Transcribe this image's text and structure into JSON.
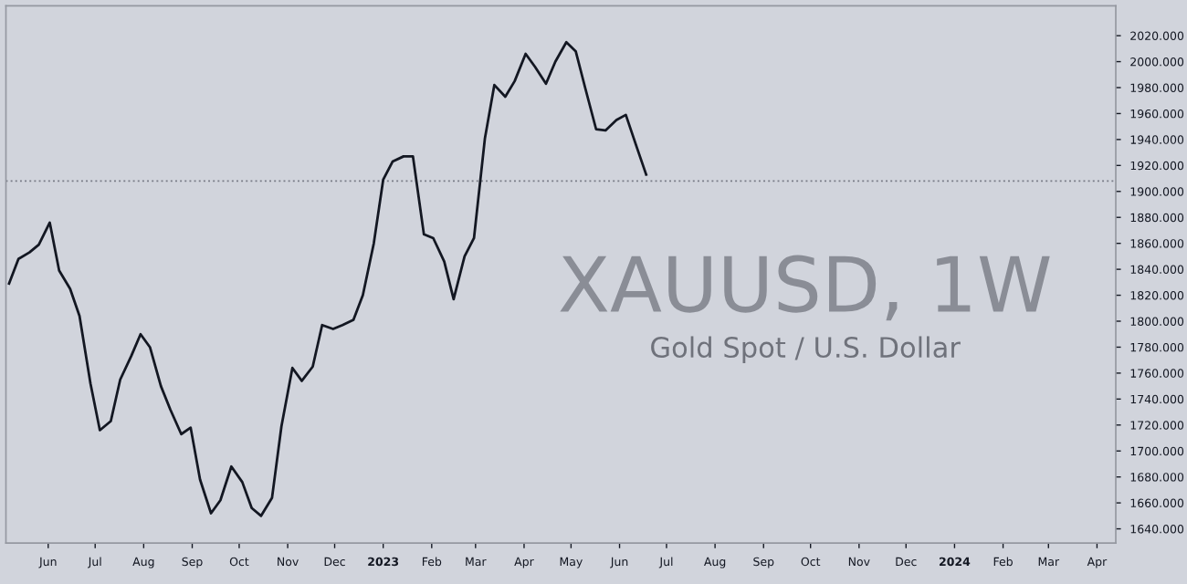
{
  "chart_data": {
    "type": "line",
    "title": "XAUUSD, 1W",
    "subtitle": "Gold Spot / U.S. Dollar",
    "x": [
      "2022-05-07",
      "2022-05-13",
      "2022-05-20",
      "2022-05-26",
      "2022-06-02",
      "2022-06-08",
      "2022-06-15",
      "2022-06-21",
      "2022-06-28",
      "2022-07-04",
      "2022-07-11",
      "2022-07-17",
      "2022-07-24",
      "2022-07-30",
      "2022-08-05",
      "2022-08-12",
      "2022-08-18",
      "2022-08-25",
      "2022-08-31",
      "2022-09-06",
      "2022-09-13",
      "2022-09-19",
      "2022-09-26",
      "2022-10-03",
      "2022-10-09",
      "2022-10-15",
      "2022-10-22",
      "2022-10-28",
      "2022-11-04",
      "2022-11-10",
      "2022-11-17",
      "2022-11-23",
      "2022-11-30",
      "2022-12-06",
      "2022-12-13",
      "2022-12-19",
      "2022-12-26",
      "2023-01-01",
      "2023-01-07",
      "2023-01-14",
      "2023-01-20",
      "2023-01-27",
      "2023-02-02",
      "2023-02-09",
      "2023-02-15",
      "2023-02-22",
      "2023-02-28",
      "2023-03-07",
      "2023-03-13",
      "2023-03-20",
      "2023-03-26",
      "2023-04-02",
      "2023-04-08",
      "2023-04-15",
      "2023-04-21",
      "2023-04-28",
      "2023-05-04",
      "2023-05-10",
      "2023-05-17",
      "2023-05-23",
      "2023-05-30",
      "2023-06-05",
      "2023-06-12",
      "2023-06-18"
    ],
    "series": [
      {
        "color": "#131722",
        "values": [
          1829,
          1848,
          1853,
          1859,
          1876,
          1839,
          1825,
          1804,
          1752,
          1716,
          1723,
          1755,
          1773,
          1790,
          1780,
          1750,
          1732,
          1713,
          1718,
          1678,
          1652,
          1662,
          1688,
          1676,
          1656,
          1650,
          1664,
          1719,
          1764,
          1754,
          1765,
          1797,
          1794,
          1797,
          1801,
          1820,
          1860,
          1909,
          1923,
          1927,
          1927,
          1867,
          1864,
          1846,
          1817,
          1850,
          1864,
          1941,
          1982,
          1973,
          1985,
          2006,
          1996,
          1983,
          2000,
          2015,
          2008,
          1980,
          1948,
          1947,
          1955,
          1959,
          1934,
          1913
        ]
      }
    ],
    "xlim": [
      "2022-05-05",
      "2024-04-13"
    ],
    "xticks": [
      {
        "value": "2022-06-01",
        "label": "Jun"
      },
      {
        "value": "2022-07-01",
        "label": "Jul"
      },
      {
        "value": "2022-08-01",
        "label": "Aug"
      },
      {
        "value": "2022-09-01",
        "label": "Sep"
      },
      {
        "value": "2022-10-01",
        "label": "Oct"
      },
      {
        "value": "2022-11-01",
        "label": "Nov"
      },
      {
        "value": "2022-12-01",
        "label": "Dec"
      },
      {
        "value": "2023-01-01",
        "label": "2023"
      },
      {
        "value": "2023-02-01",
        "label": "Feb"
      },
      {
        "value": "2023-03-01",
        "label": "Mar"
      },
      {
        "value": "2023-04-01",
        "label": "Apr"
      },
      {
        "value": "2023-05-01",
        "label": "May"
      },
      {
        "value": "2023-06-01",
        "label": "Jun"
      },
      {
        "value": "2023-07-01",
        "label": "Jul"
      },
      {
        "value": "2023-08-01",
        "label": "Aug"
      },
      {
        "value": "2023-09-01",
        "label": "Sep"
      },
      {
        "value": "2023-10-01",
        "label": "Oct"
      },
      {
        "value": "2023-11-01",
        "label": "Nov"
      },
      {
        "value": "2023-12-01",
        "label": "Dec"
      },
      {
        "value": "2024-01-01",
        "label": "2024"
      },
      {
        "value": "2024-02-01",
        "label": "Feb"
      },
      {
        "value": "2024-03-01",
        "label": "Mar"
      },
      {
        "value": "2024-04-01",
        "label": "Apr"
      }
    ],
    "ylim": [
      1629,
      2043
    ],
    "yticks": [
      {
        "value": 1640,
        "label": "1640.000"
      },
      {
        "value": 1660,
        "label": "1660.000"
      },
      {
        "value": 1680,
        "label": "1680.000"
      },
      {
        "value": 1700,
        "label": "1700.000"
      },
      {
        "value": 1720,
        "label": "1720.000"
      },
      {
        "value": 1740,
        "label": "1740.000"
      },
      {
        "value": 1760,
        "label": "1760.000"
      },
      {
        "value": 1780,
        "label": "1780.000"
      },
      {
        "value": 1800,
        "label": "1800.000"
      },
      {
        "value": 1820,
        "label": "1820.000"
      },
      {
        "value": 1840,
        "label": "1840.000"
      },
      {
        "value": 1860,
        "label": "1860.000"
      },
      {
        "value": 1880,
        "label": "1880.000"
      },
      {
        "value": 1900,
        "label": "1900.000"
      },
      {
        "value": 1920,
        "label": "1920.000"
      },
      {
        "value": 1940,
        "label": "1940.000"
      },
      {
        "value": 1960,
        "label": "1960.000"
      },
      {
        "value": 1980,
        "label": "1980.000"
      },
      {
        "value": 2000,
        "label": "2000.000"
      },
      {
        "value": 2020,
        "label": "2020.000"
      }
    ],
    "ref_lines": [
      {
        "axis": "y",
        "value": 1908,
        "color": "#787b86",
        "line_style": "dotted"
      }
    ],
    "grid": false,
    "legend": false,
    "marker": "none",
    "line_style": "solid"
  }
}
